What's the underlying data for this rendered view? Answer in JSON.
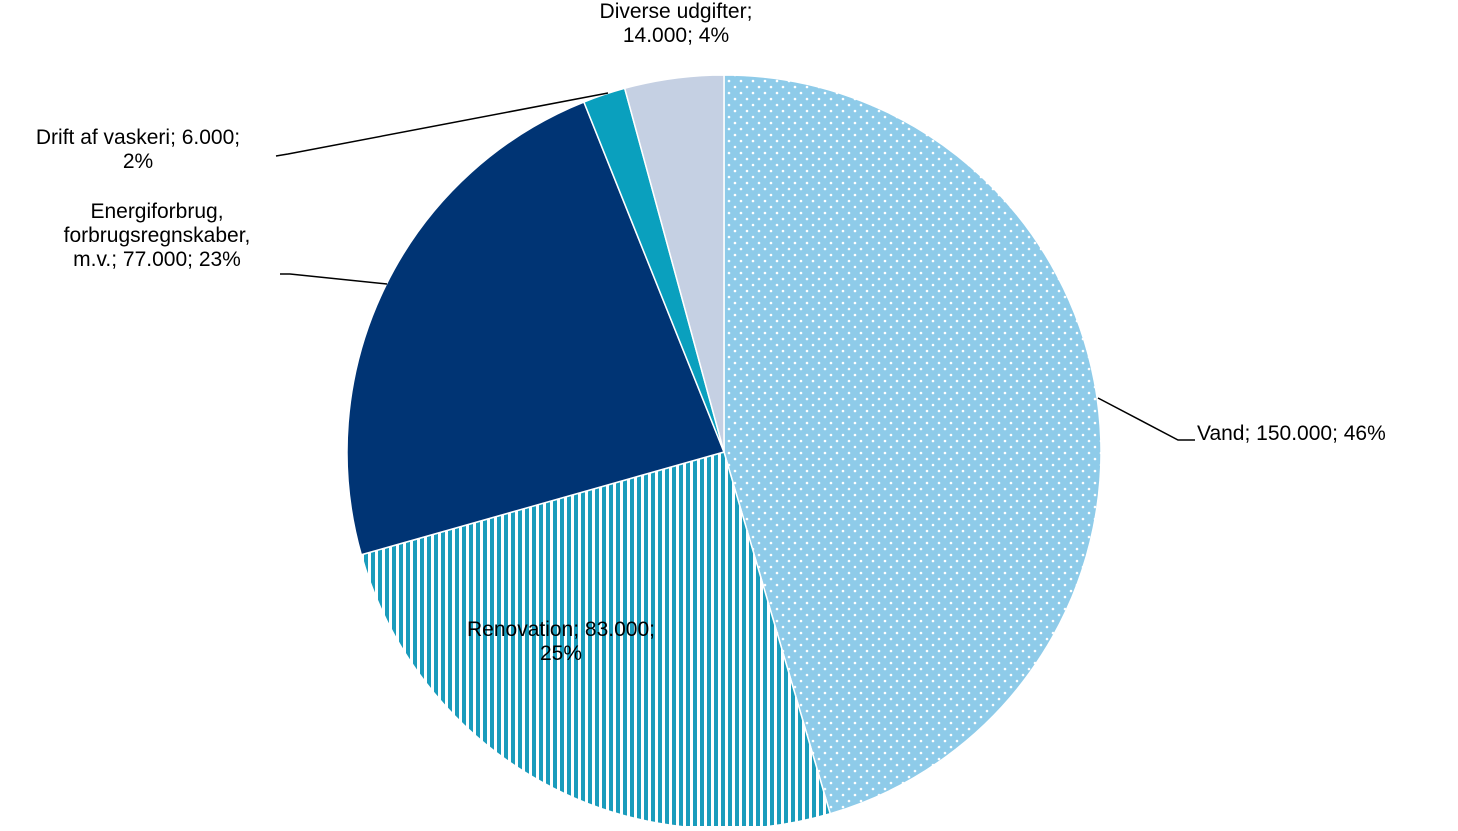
{
  "chart_data": {
    "type": "pie",
    "title": "",
    "slices": [
      {
        "label": "Vand",
        "value": 150000,
        "value_label": "150.000",
        "percent_label": "46%",
        "color": "#8ecbe9",
        "fill": "dots"
      },
      {
        "label": "Renovation",
        "value": 83000,
        "value_label": "83.000",
        "percent_label": "25%",
        "color": "#1a9cbc",
        "fill": "vertical-stripes"
      },
      {
        "label": "Energiforbrug, forbrugsregnskaber, m.v.",
        "value": 77000,
        "value_label": "77.000",
        "percent_label": "23%",
        "color": "#003474",
        "fill": "solid"
      },
      {
        "label": "Drift af vaskeri",
        "value": 6000,
        "value_label": "6.000",
        "percent_label": "2%",
        "color": "#0aa0be",
        "fill": "solid"
      },
      {
        "label": "Diverse udgifter",
        "value": 14000,
        "value_label": "14.000",
        "percent_label": "4%",
        "color": "#c5d0e3",
        "fill": "solid"
      }
    ],
    "data_label_lines": [
      [
        "Vand; 150.000; 46%"
      ],
      [
        "Renovation; 83.000;",
        "25%"
      ],
      [
        "Energiforbrug,",
        "forbrugsregnskaber,",
        "m.v.; 77.000; 23%"
      ],
      [
        "Drift af vaskeri; 6.000;",
        "2%"
      ],
      [
        "Diverse udgifter;",
        "14.000; 4%"
      ]
    ],
    "start_angle": "12 o'clock",
    "direction": "clockwise",
    "legend": "none"
  }
}
